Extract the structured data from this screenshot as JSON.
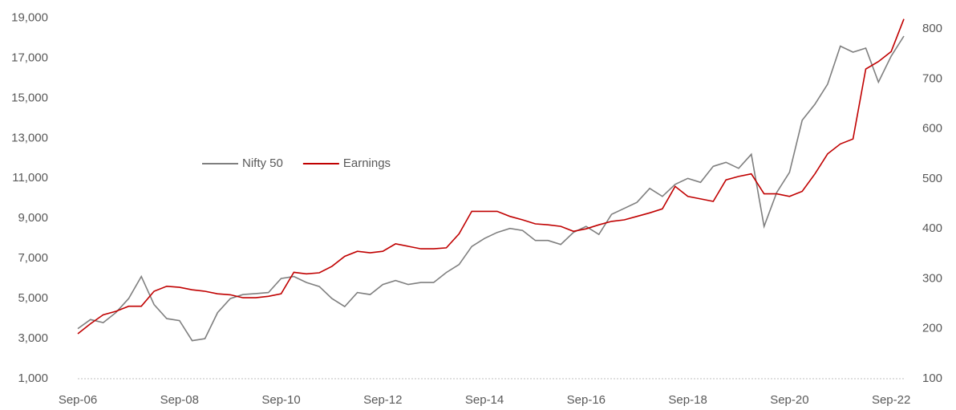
{
  "chart_data": {
    "type": "line",
    "categories": [
      "Sep-06",
      null,
      null,
      null,
      null,
      null,
      null,
      null,
      "Sep-08",
      null,
      null,
      null,
      null,
      null,
      null,
      null,
      "Sep-10",
      null,
      null,
      null,
      null,
      null,
      null,
      null,
      "Sep-12",
      null,
      null,
      null,
      null,
      null,
      null,
      null,
      "Sep-14",
      null,
      null,
      null,
      null,
      null,
      null,
      null,
      "Sep-16",
      null,
      null,
      null,
      null,
      null,
      null,
      null,
      "Sep-18",
      null,
      null,
      null,
      null,
      null,
      null,
      null,
      "Sep-20",
      null,
      null,
      null,
      null,
      null,
      null,
      null,
      "Sep-22",
      null
    ],
    "series": [
      {
        "name": "Nifty 50",
        "color": "#7f7f7f",
        "values": [
          3500,
          3950,
          3800,
          4300,
          5000,
          6100,
          4700,
          4000,
          3900,
          2900,
          3000,
          4300,
          5000,
          5200,
          5250,
          5300,
          6000,
          6100,
          5800,
          5600,
          5000,
          4600,
          5300,
          5200,
          5700,
          5900,
          5700,
          5800,
          5800,
          6300,
          6700,
          7600,
          8000,
          8300,
          8500,
          8400,
          7900,
          7900,
          7700,
          8300,
          8600,
          8200,
          9200,
          9500,
          9800,
          10500,
          10100,
          10700,
          11000,
          10800,
          11600,
          11800,
          11500,
          12200,
          8600,
          10300,
          11300,
          13900,
          14700,
          15700,
          17600,
          17300,
          17500,
          15800,
          17100,
          18100
        ]
      },
      {
        "name": "Earnings",
        "color": "#c00000",
        "axis": "y2",
        "values": [
          190,
          210,
          228,
          235,
          245,
          245,
          275,
          285,
          283,
          278,
          275,
          270,
          268,
          262,
          262,
          265,
          270,
          313,
          310,
          312,
          325,
          345,
          355,
          352,
          355,
          370,
          365,
          360,
          360,
          362,
          390,
          435,
          435,
          435,
          425,
          418,
          410,
          408,
          405,
          395,
          400,
          408,
          415,
          418,
          425,
          432,
          440,
          485,
          465,
          460,
          455,
          498,
          505,
          510,
          470,
          470,
          465,
          475,
          510,
          550,
          570,
          580,
          720,
          735,
          755,
          820
        ]
      }
    ],
    "ylim": [
      1000,
      19100
    ],
    "yticks": [
      {
        "value": 1000,
        "label": "1,000"
      },
      {
        "value": 3000,
        "label": "3,000"
      },
      {
        "value": 5000,
        "label": "5,000"
      },
      {
        "value": 7000,
        "label": "7,000"
      },
      {
        "value": 9000,
        "label": "9,000"
      },
      {
        "value": 11000,
        "label": "11,000"
      },
      {
        "value": 13000,
        "label": "13,000"
      },
      {
        "value": 15000,
        "label": "15,000"
      },
      {
        "value": 17000,
        "label": "17,000"
      },
      {
        "value": 19000,
        "label": "19,000"
      }
    ],
    "y2lim": [
      100,
      826
    ],
    "y2ticks": [
      100,
      200,
      300,
      400,
      500,
      600,
      700,
      800
    ],
    "legend": "center-left"
  }
}
